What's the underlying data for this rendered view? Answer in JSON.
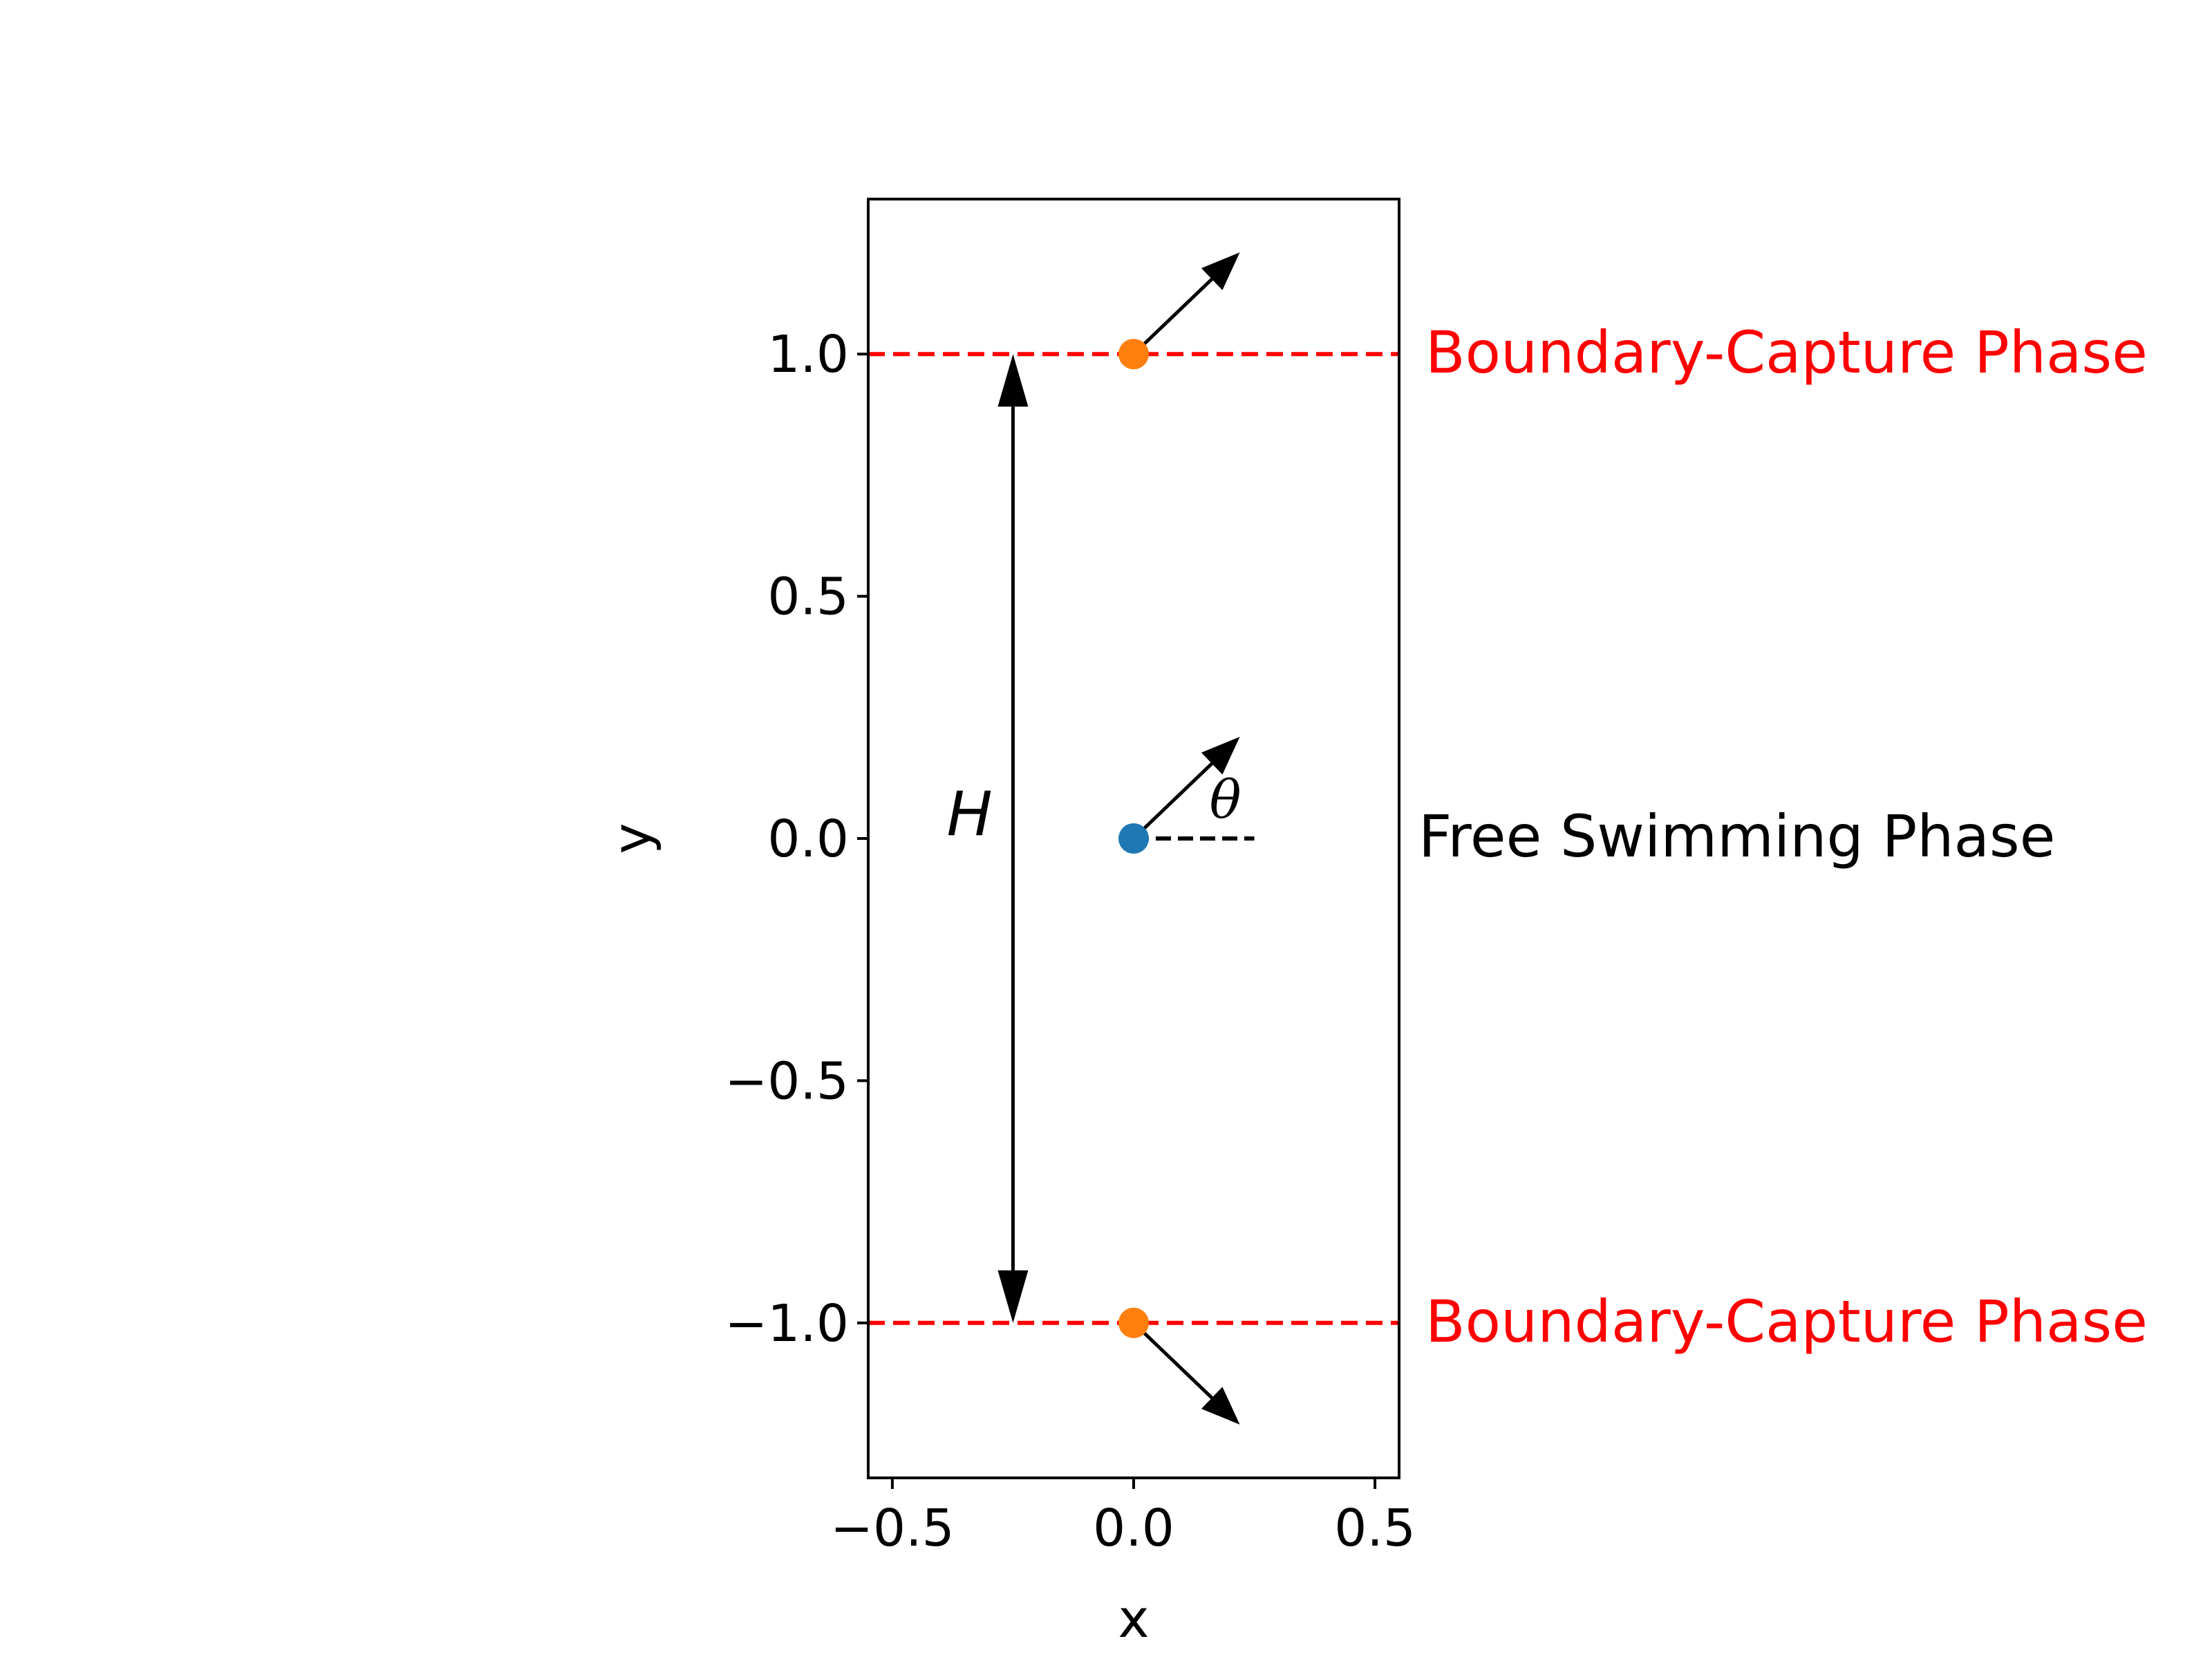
{
  "chart_data": {
    "type": "diagram",
    "xlabel": "x",
    "ylabel": "y",
    "xlim": [
      -0.55,
      0.55
    ],
    "ylim": [
      -1.32,
      1.32
    ],
    "x_ticks": [
      {
        "value": -0.5,
        "label": "−0.5"
      },
      {
        "value": 0.0,
        "label": "0.0"
      },
      {
        "value": 0.5,
        "label": "0.5"
      }
    ],
    "y_ticks": [
      {
        "value": -1.0,
        "label": "−1.0"
      },
      {
        "value": -0.5,
        "label": "−0.5"
      },
      {
        "value": 0.0,
        "label": "0.0"
      },
      {
        "value": 0.5,
        "label": "0.5"
      },
      {
        "value": 1.0,
        "label": "1.0"
      }
    ],
    "boundaries": [
      {
        "y": 1.0,
        "color": "#ff0000",
        "label": "Boundary-Capture Phase"
      },
      {
        "y": -1.0,
        "color": "#ff0000",
        "label": "Boundary-Capture Phase"
      }
    ],
    "points": [
      {
        "x": 0.0,
        "y": 1.0,
        "color": "#ff7f0e"
      },
      {
        "x": 0.0,
        "y": 0.0,
        "color": "#1f77b4"
      },
      {
        "x": 0.0,
        "y": -1.0,
        "color": "#ff7f0e"
      }
    ],
    "arrows": [
      {
        "x": 0.0,
        "y": 1.0,
        "dx": 0.22,
        "dy": 0.21
      },
      {
        "x": 0.0,
        "y": 0.0,
        "dx": 0.22,
        "dy": 0.21
      },
      {
        "x": 0.0,
        "y": -1.0,
        "dx": 0.22,
        "dy": -0.21
      }
    ],
    "reference_line": {
      "x1": 0.0,
      "y1": 0.0,
      "x2": 0.25,
      "y2": 0.0
    },
    "angle_label": {
      "text": "θ",
      "x": 0.19,
      "y": 0.08
    },
    "height_arrow": {
      "x": -0.25,
      "y1": -1.0,
      "y2": 1.0,
      "label": "H",
      "label_x": -0.34,
      "label_y": 0.05
    },
    "free_label": {
      "text": "Free Swimming Phase",
      "y": 0.0
    }
  }
}
